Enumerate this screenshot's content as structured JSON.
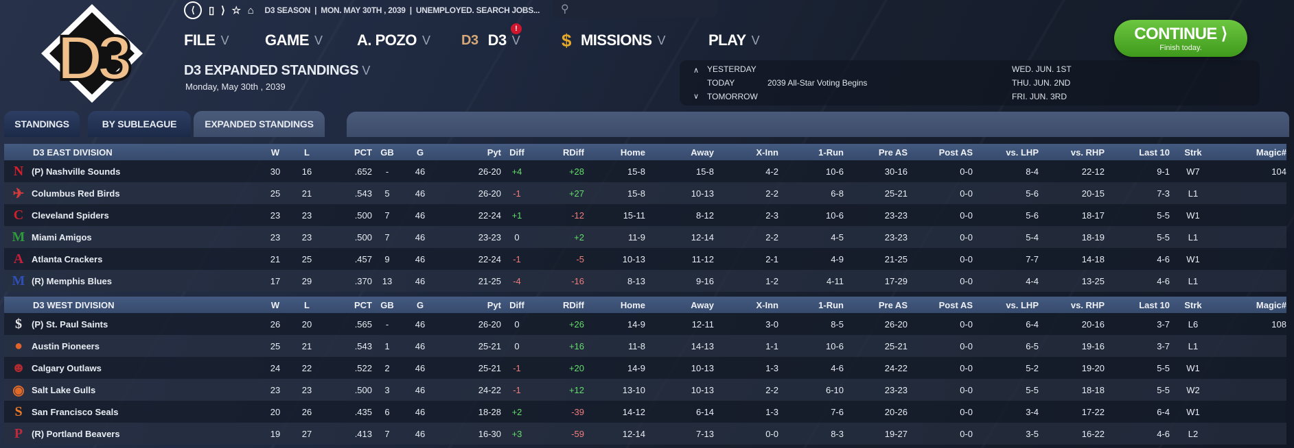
{
  "header": {
    "topbar_text": "D3 SEASON  |  MON. MAY 30TH , 2039  |  UNEMPLOYED. SEARCH JOBS...",
    "search_placeholder": "",
    "menu": {
      "file": "FILE",
      "game": "GAME",
      "manager": "A. POZO",
      "league": "D3",
      "league_alert": "!",
      "missions": "MISSIONS",
      "play": "PLAY"
    },
    "logo_text": "D3",
    "page_title": "D3 EXPANDED STANDINGS",
    "page_date": "Monday, May 30th , 2039"
  },
  "calendar": {
    "yesterday": "YESTERDAY",
    "today": "TODAY",
    "tomorrow": "TOMORROW",
    "today_event": "2039 All-Star Voting Begins",
    "dates": [
      "WED. JUN. 1ST",
      "THU. JUN. 2ND",
      "FRI. JUN. 3RD"
    ]
  },
  "continue": {
    "label": "CONTINUE",
    "sub": "Finish today."
  },
  "tabs": [
    "STANDINGS",
    "BY SUBLEAGUE",
    "EXPANDED STANDINGS"
  ],
  "columns": [
    "W",
    "L",
    "PCT",
    "GB",
    "G",
    "Pyt",
    "Diff",
    "RDiff",
    "Home",
    "Away",
    "X-Inn",
    "1-Run",
    "Pre AS",
    "Post AS",
    "vs. LHP",
    "vs. RHP",
    "Last 10",
    "Strk",
    "Magic#"
  ],
  "colors": {
    "positive": "#63df6b",
    "negative": "#f17d7d",
    "continue": "#4fae28"
  },
  "divisions": [
    {
      "name": "D3 EAST DIVISION",
      "teams": [
        {
          "name": "(P) Nashville Sounds",
          "logo": "N",
          "logo_color": "#d4202c",
          "stats": [
            "30",
            "16",
            ".652",
            "-",
            "46",
            "26-20",
            "+4",
            "+28",
            "15-8",
            "15-8",
            "4-2",
            "10-6",
            "30-16",
            "0-0",
            "8-4",
            "22-12",
            "9-1",
            "W7",
            "104"
          ]
        },
        {
          "name": "Columbus Red Birds",
          "logo": "✈",
          "logo_color": "#d33b3b",
          "stats": [
            "25",
            "21",
            ".543",
            "5",
            "46",
            "26-20",
            "-1",
            "+27",
            "15-8",
            "10-13",
            "2-2",
            "6-8",
            "25-21",
            "0-0",
            "5-6",
            "20-15",
            "7-3",
            "L1",
            ""
          ]
        },
        {
          "name": "Cleveland Spiders",
          "logo": "C",
          "logo_color": "#d01f2d",
          "stats": [
            "23",
            "23",
            ".500",
            "7",
            "46",
            "22-24",
            "+1",
            "-12",
            "15-11",
            "8-12",
            "2-3",
            "10-6",
            "23-23",
            "0-0",
            "5-6",
            "18-17",
            "5-5",
            "W1",
            ""
          ]
        },
        {
          "name": "Miami Amigos",
          "logo": "M",
          "logo_color": "#2e9a3b",
          "stats": [
            "23",
            "23",
            ".500",
            "7",
            "46",
            "23-23",
            "0",
            "+2",
            "11-9",
            "12-14",
            "2-2",
            "4-5",
            "23-23",
            "0-0",
            "5-4",
            "18-19",
            "5-5",
            "L1",
            ""
          ]
        },
        {
          "name": "Atlanta Crackers",
          "logo": "A",
          "logo_color": "#c8203a",
          "stats": [
            "21",
            "25",
            ".457",
            "9",
            "46",
            "22-24",
            "-1",
            "-5",
            "10-13",
            "11-12",
            "2-1",
            "4-9",
            "21-25",
            "0-0",
            "7-7",
            "14-18",
            "4-6",
            "W1",
            ""
          ]
        },
        {
          "name": "(R) Memphis Blues",
          "logo": "M",
          "logo_color": "#2f4fb5",
          "stats": [
            "17",
            "29",
            ".370",
            "13",
            "46",
            "21-25",
            "-4",
            "-16",
            "8-13",
            "9-16",
            "1-2",
            "4-11",
            "17-29",
            "0-0",
            "4-4",
            "13-25",
            "4-6",
            "L1",
            ""
          ]
        }
      ]
    },
    {
      "name": "D3 WEST DIVISION",
      "teams": [
        {
          "name": "(P) St. Paul Saints",
          "logo": "$",
          "logo_color": "#e8e8e8",
          "stats": [
            "26",
            "20",
            ".565",
            "-",
            "46",
            "26-20",
            "0",
            "+26",
            "14-9",
            "12-11",
            "3-0",
            "8-5",
            "26-20",
            "0-0",
            "6-4",
            "20-16",
            "3-7",
            "L6",
            "108"
          ]
        },
        {
          "name": "Austin Pioneers",
          "logo": "●",
          "logo_color": "#e2632a",
          "stats": [
            "25",
            "21",
            ".543",
            "1",
            "46",
            "25-21",
            "0",
            "+16",
            "11-8",
            "14-13",
            "1-1",
            "10-6",
            "25-21",
            "0-0",
            "6-5",
            "19-16",
            "3-7",
            "L1",
            ""
          ]
        },
        {
          "name": "Calgary Outlaws",
          "logo": "☻",
          "logo_color": "#b02a30",
          "stats": [
            "24",
            "22",
            ".522",
            "2",
            "46",
            "25-21",
            "-1",
            "+20",
            "14-9",
            "10-13",
            "1-3",
            "4-6",
            "24-22",
            "0-0",
            "5-2",
            "19-20",
            "5-5",
            "W1",
            ""
          ]
        },
        {
          "name": "Salt Lake Gulls",
          "logo": "◉",
          "logo_color": "#e06a2a",
          "stats": [
            "23",
            "23",
            ".500",
            "3",
            "46",
            "24-22",
            "-1",
            "+12",
            "13-10",
            "10-13",
            "2-2",
            "6-10",
            "23-23",
            "0-0",
            "5-5",
            "18-18",
            "5-5",
            "W2",
            ""
          ]
        },
        {
          "name": "San Francisco Seals",
          "logo": "S",
          "logo_color": "#f07a23",
          "stats": [
            "20",
            "26",
            ".435",
            "6",
            "46",
            "18-28",
            "+2",
            "-39",
            "14-12",
            "6-14",
            "1-3",
            "7-6",
            "20-26",
            "0-0",
            "3-4",
            "17-22",
            "6-4",
            "W1",
            ""
          ]
        },
        {
          "name": "(R) Portland Beavers",
          "logo": "P",
          "logo_color": "#c0283c",
          "stats": [
            "19",
            "27",
            ".413",
            "7",
            "46",
            "16-30",
            "+3",
            "-59",
            "12-14",
            "7-13",
            "0-0",
            "8-3",
            "19-27",
            "0-0",
            "3-5",
            "16-22",
            "4-6",
            "L2",
            ""
          ]
        }
      ]
    }
  ]
}
